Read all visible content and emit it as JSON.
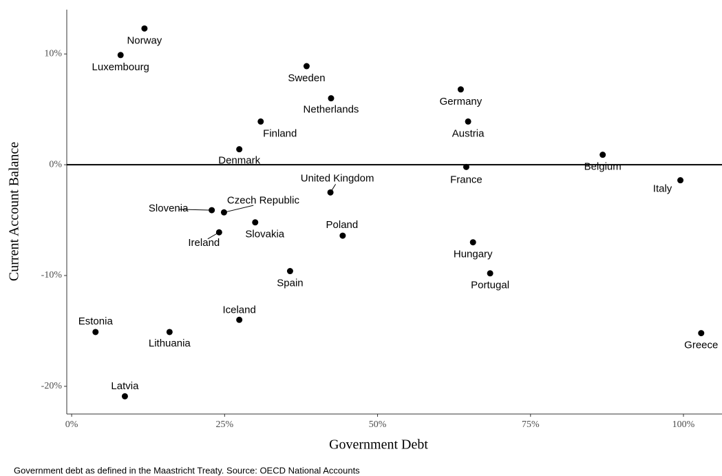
{
  "chart_data": {
    "type": "scatter",
    "xlabel": "Government Debt",
    "ylabel": "Current Account Balance",
    "caption": "Government debt as defined in the Maastricht Treaty. Source: OECD National Accounts",
    "labels": [
      "Norway",
      "Luxembourg",
      "Sweden",
      "Netherlands",
      "Germany",
      "Finland",
      "Austria",
      "Denmark",
      "Belgium",
      "France",
      "Italy",
      "United Kingdom",
      "Slovenia",
      "Czech Republic",
      "Slovakia",
      "Ireland",
      "Poland",
      "Hungary",
      "Spain",
      "Portugal",
      "Iceland",
      "Estonia",
      "Lithuania",
      "Greece",
      "Latvia"
    ],
    "x": [
      11.9,
      8.0,
      38.4,
      42.4,
      63.6,
      30.9,
      64.8,
      27.4,
      86.8,
      64.5,
      99.5,
      42.3,
      22.9,
      24.9,
      30.0,
      24.1,
      44.3,
      65.6,
      35.7,
      68.4,
      27.4,
      3.9,
      16.0,
      102.9,
      8.7
    ],
    "y": [
      12.3,
      9.9,
      8.9,
      6.0,
      6.8,
      3.9,
      3.9,
      1.4,
      0.9,
      -0.2,
      -1.4,
      -2.5,
      -4.1,
      -4.3,
      -5.2,
      -6.1,
      -6.4,
      -7.0,
      -9.6,
      -9.8,
      -14.0,
      -15.1,
      -15.1,
      -15.2,
      -20.9
    ],
    "color": "#000000",
    "hline": 0,
    "xlim": [
      -0.8,
      106.3
    ],
    "ylim": [
      -22.5,
      14.0
    ],
    "xticks": [
      {
        "value": 0,
        "label": "0%"
      },
      {
        "value": 25,
        "label": "25%"
      },
      {
        "value": 50,
        "label": "50%"
      },
      {
        "value": 75,
        "label": "75%"
      },
      {
        "value": 100,
        "label": "100%"
      }
    ],
    "yticks": [
      {
        "value": -20,
        "label": "-20%"
      },
      {
        "value": -10,
        "label": "-10%"
      },
      {
        "value": 0,
        "label": "0%"
      },
      {
        "value": 10,
        "label": "10%"
      }
    ]
  }
}
